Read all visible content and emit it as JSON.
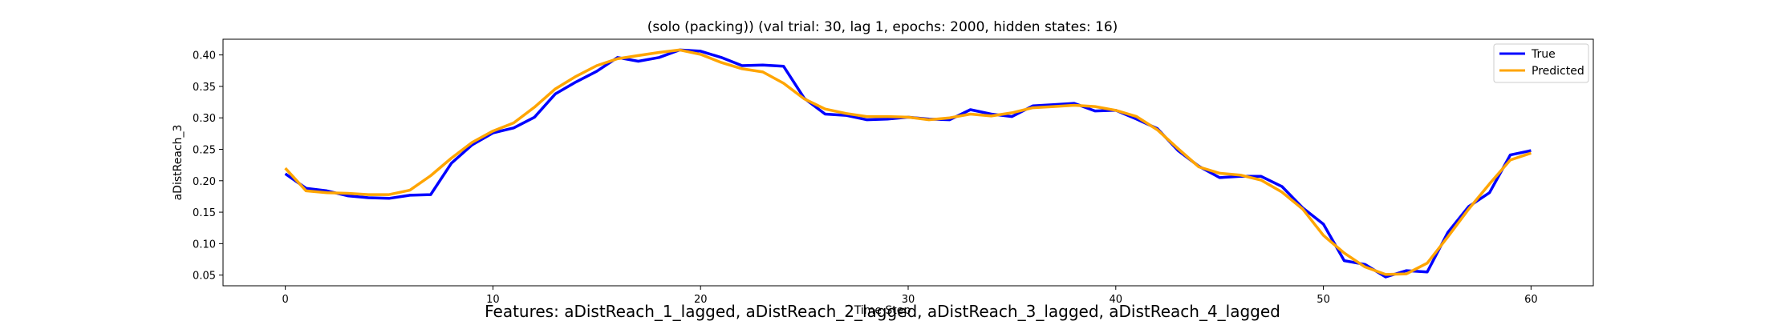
{
  "footer": "Features: aDistReach_1_lagged, aDistReach_2_lagged, aDistReach_3_lagged, aDistReach_4_lagged",
  "chart_data": {
    "type": "line",
    "title": "(solo (packing)) (val trial: 30, lag 1, epochs: 2000, hidden states: 16)",
    "xlabel": "Time Step",
    "ylabel": "aDistReach_3",
    "xlim": [
      -3,
      63
    ],
    "ylim": [
      0.033,
      0.425
    ],
    "xticks": [
      0,
      10,
      20,
      30,
      40,
      50,
      60
    ],
    "yticks": [
      0.05,
      0.1,
      0.15,
      0.2,
      0.25,
      0.3,
      0.35,
      0.4
    ],
    "ytick_labels": [
      "0.05",
      "0.10",
      "0.15",
      "0.20",
      "0.25",
      "0.30",
      "0.35",
      "0.40"
    ],
    "grid": false,
    "legend_position": "top-right",
    "x": [
      0,
      1,
      2,
      3,
      4,
      5,
      6,
      7,
      8,
      9,
      10,
      11,
      12,
      13,
      14,
      15,
      16,
      17,
      18,
      19,
      20,
      21,
      22,
      23,
      24,
      25,
      26,
      27,
      28,
      29,
      30,
      31,
      32,
      33,
      34,
      35,
      36,
      37,
      38,
      39,
      40,
      41,
      42,
      43,
      44,
      45,
      46,
      47,
      48,
      49,
      50,
      51,
      52,
      53,
      54,
      55,
      56,
      57,
      58,
      59,
      60
    ],
    "series": [
      {
        "name": "True",
        "color": "#0000ff",
        "values": [
          0.211,
          0.188,
          0.184,
          0.176,
          0.173,
          0.172,
          0.177,
          0.178,
          0.228,
          0.257,
          0.276,
          0.284,
          0.301,
          0.338,
          0.357,
          0.374,
          0.396,
          0.39,
          0.396,
          0.408,
          0.406,
          0.396,
          0.383,
          0.384,
          0.382,
          0.331,
          0.306,
          0.304,
          0.297,
          0.298,
          0.301,
          0.298,
          0.297,
          0.313,
          0.306,
          0.302,
          0.319,
          0.321,
          0.323,
          0.311,
          0.312,
          0.298,
          0.283,
          0.248,
          0.223,
          0.205,
          0.207,
          0.207,
          0.191,
          0.157,
          0.131,
          0.073,
          0.067,
          0.047,
          0.057,
          0.055,
          0.118,
          0.159,
          0.181,
          0.241,
          0.248
        ]
      },
      {
        "name": "Predicted",
        "color": "#ffa500",
        "values": [
          0.22,
          0.184,
          0.181,
          0.18,
          0.178,
          0.178,
          0.185,
          0.208,
          0.236,
          0.261,
          0.279,
          0.292,
          0.317,
          0.346,
          0.366,
          0.383,
          0.394,
          0.399,
          0.404,
          0.408,
          0.401,
          0.388,
          0.378,
          0.373,
          0.355,
          0.33,
          0.314,
          0.307,
          0.302,
          0.302,
          0.301,
          0.297,
          0.3,
          0.306,
          0.303,
          0.308,
          0.316,
          0.318,
          0.32,
          0.318,
          0.312,
          0.302,
          0.281,
          0.251,
          0.222,
          0.212,
          0.209,
          0.201,
          0.182,
          0.155,
          0.113,
          0.085,
          0.063,
          0.051,
          0.052,
          0.069,
          0.111,
          0.155,
          0.195,
          0.233,
          0.244
        ]
      }
    ]
  }
}
